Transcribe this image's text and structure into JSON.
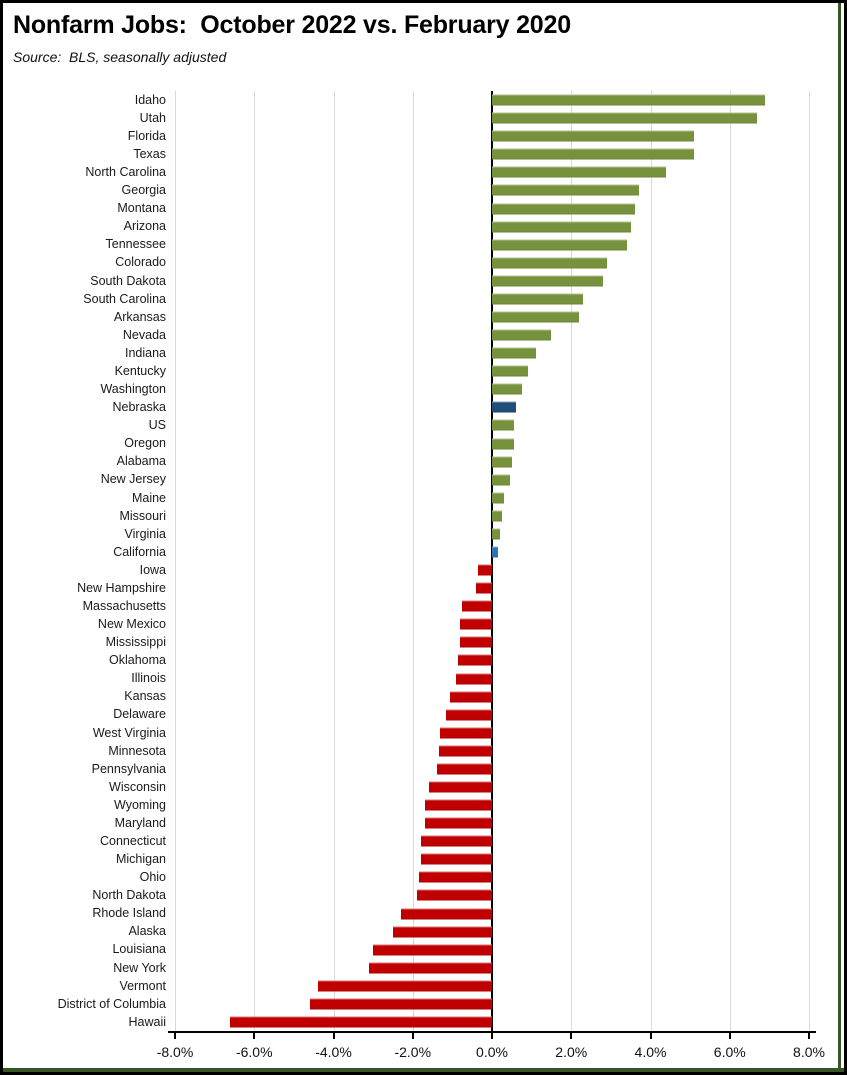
{
  "header": {
    "title": "Nonfarm Jobs:  October 2022 vs. February 2020",
    "source": "Source:  BLS, seasonally adjusted"
  },
  "colors": {
    "green": "#76923C",
    "red": "#C00000",
    "dark_blue": "#1F4E79",
    "light_blue": "#2E75B6",
    "gridline": "#D9D9D9",
    "zero_line": "#000000",
    "axis_line": "#000000",
    "frame_green": "#375623",
    "border_black": "#000000"
  },
  "chart_data": {
    "type": "bar",
    "orientation": "horizontal",
    "title": "Nonfarm Jobs:  October 2022 vs. February 2020",
    "subtitle": "Source:  BLS, seasonally adjusted",
    "xlabel": "",
    "ylabel": "",
    "xlim": [
      -8,
      8
    ],
    "grid": true,
    "legend": "none",
    "tick_labels": [
      "-8.0%",
      "-6.0%",
      "-4.0%",
      "-2.0%",
      "0.0%",
      "2.0%",
      "4.0%",
      "6.0%",
      "8.0%"
    ],
    "tick_values": [
      -8,
      -6,
      -4,
      -2,
      0,
      2,
      4,
      6,
      8
    ],
    "units": "percent change",
    "points": [
      {
        "label": "Idaho",
        "value": 6.9,
        "color": "green"
      },
      {
        "label": "Utah",
        "value": 6.7,
        "color": "green"
      },
      {
        "label": "Florida",
        "value": 5.1,
        "color": "green"
      },
      {
        "label": "Texas",
        "value": 5.1,
        "color": "green"
      },
      {
        "label": "North Carolina",
        "value": 4.4,
        "color": "green"
      },
      {
        "label": "Georgia",
        "value": 3.7,
        "color": "green"
      },
      {
        "label": "Montana",
        "value": 3.6,
        "color": "green"
      },
      {
        "label": "Arizona",
        "value": 3.5,
        "color": "green"
      },
      {
        "label": "Tennessee",
        "value": 3.4,
        "color": "green"
      },
      {
        "label": "Colorado",
        "value": 2.9,
        "color": "green"
      },
      {
        "label": "South Dakota",
        "value": 2.8,
        "color": "green"
      },
      {
        "label": "South Carolina",
        "value": 2.3,
        "color": "green"
      },
      {
        "label": "Arkansas",
        "value": 2.2,
        "color": "green"
      },
      {
        "label": "Nevada",
        "value": 1.5,
        "color": "green"
      },
      {
        "label": "Indiana",
        "value": 1.1,
        "color": "green"
      },
      {
        "label": "Kentucky",
        "value": 0.9,
        "color": "green"
      },
      {
        "label": "Washington",
        "value": 0.75,
        "color": "green"
      },
      {
        "label": "Nebraska",
        "value": 0.6,
        "color": "dark_blue"
      },
      {
        "label": "US",
        "value": 0.55,
        "color": "green"
      },
      {
        "label": "Oregon",
        "value": 0.55,
        "color": "green"
      },
      {
        "label": "Alabama",
        "value": 0.5,
        "color": "green"
      },
      {
        "label": "New Jersey",
        "value": 0.45,
        "color": "green"
      },
      {
        "label": "Maine",
        "value": 0.3,
        "color": "green"
      },
      {
        "label": "Missouri",
        "value": 0.25,
        "color": "green"
      },
      {
        "label": "Virginia",
        "value": 0.2,
        "color": "green"
      },
      {
        "label": "California",
        "value": 0.15,
        "color": "light_blue"
      },
      {
        "label": "Iowa",
        "value": -0.35,
        "color": "red"
      },
      {
        "label": "New Hampshire",
        "value": -0.4,
        "color": "red"
      },
      {
        "label": "Massachusetts",
        "value": -0.75,
        "color": "red"
      },
      {
        "label": "New Mexico",
        "value": -0.8,
        "color": "red"
      },
      {
        "label": "Mississippi",
        "value": -0.8,
        "color": "red"
      },
      {
        "label": "Oklahoma",
        "value": -0.85,
        "color": "red"
      },
      {
        "label": "Illinois",
        "value": -0.9,
        "color": "red"
      },
      {
        "label": "Kansas",
        "value": -1.05,
        "color": "red"
      },
      {
        "label": "Delaware",
        "value": -1.15,
        "color": "red"
      },
      {
        "label": "West Virginia",
        "value": -1.3,
        "color": "red"
      },
      {
        "label": "Minnesota",
        "value": -1.35,
        "color": "red"
      },
      {
        "label": "Pennsylvania",
        "value": -1.4,
        "color": "red"
      },
      {
        "label": "Wisconsin",
        "value": -1.6,
        "color": "red"
      },
      {
        "label": "Wyoming",
        "value": -1.7,
        "color": "red"
      },
      {
        "label": "Maryland",
        "value": -1.7,
        "color": "red"
      },
      {
        "label": "Connecticut",
        "value": -1.8,
        "color": "red"
      },
      {
        "label": "Michigan",
        "value": -1.8,
        "color": "red"
      },
      {
        "label": "Ohio",
        "value": -1.85,
        "color": "red"
      },
      {
        "label": "North Dakota",
        "value": -1.9,
        "color": "red"
      },
      {
        "label": "Rhode Island",
        "value": -2.3,
        "color": "red"
      },
      {
        "label": "Alaska",
        "value": -2.5,
        "color": "red"
      },
      {
        "label": "Louisiana",
        "value": -3.0,
        "color": "red"
      },
      {
        "label": "New York",
        "value": -3.1,
        "color": "red"
      },
      {
        "label": "Vermont",
        "value": -4.4,
        "color": "red"
      },
      {
        "label": "District of Columbia",
        "value": -4.6,
        "color": "red"
      },
      {
        "label": "Hawaii",
        "value": -6.6,
        "color": "red"
      }
    ]
  }
}
